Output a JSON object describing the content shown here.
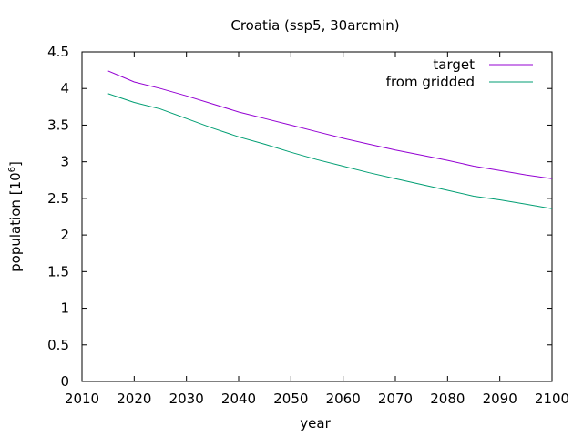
{
  "chart_data": {
    "type": "line",
    "title": "Croatia (ssp5, 30arcmin)",
    "xlabel": "year",
    "ylabel": "population [10",
    "ylabel_exponent": "6",
    "ylabel_close": "]",
    "xlim": [
      2010,
      2100
    ],
    "ylim": [
      0,
      4.5
    ],
    "xticks": [
      "2010",
      "2020",
      "2030",
      "2040",
      "2050",
      "2060",
      "2070",
      "2080",
      "2090",
      "2100"
    ],
    "yticks": [
      "0",
      "0.5",
      "1",
      "1.5",
      "2",
      "2.5",
      "3",
      "3.5",
      "4",
      "4.5"
    ],
    "grid": false,
    "legend_position": "top-right",
    "x": [
      2015,
      2020,
      2025,
      2030,
      2035,
      2040,
      2045,
      2050,
      2055,
      2060,
      2065,
      2070,
      2075,
      2080,
      2085,
      2090,
      2095,
      2100
    ],
    "series": [
      {
        "name": "target",
        "color": "#9400d3",
        "values": [
          4.24,
          4.09,
          4.0,
          3.9,
          3.79,
          3.68,
          3.59,
          3.5,
          3.41,
          3.32,
          3.24,
          3.16,
          3.09,
          3.02,
          2.94,
          2.88,
          2.82,
          2.77
        ]
      },
      {
        "name": "from gridded",
        "color": "#009e73",
        "values": [
          3.93,
          3.81,
          3.72,
          3.59,
          3.46,
          3.34,
          3.24,
          3.13,
          3.03,
          2.94,
          2.85,
          2.77,
          2.69,
          2.61,
          2.53,
          2.48,
          2.42,
          2.36
        ]
      }
    ]
  }
}
